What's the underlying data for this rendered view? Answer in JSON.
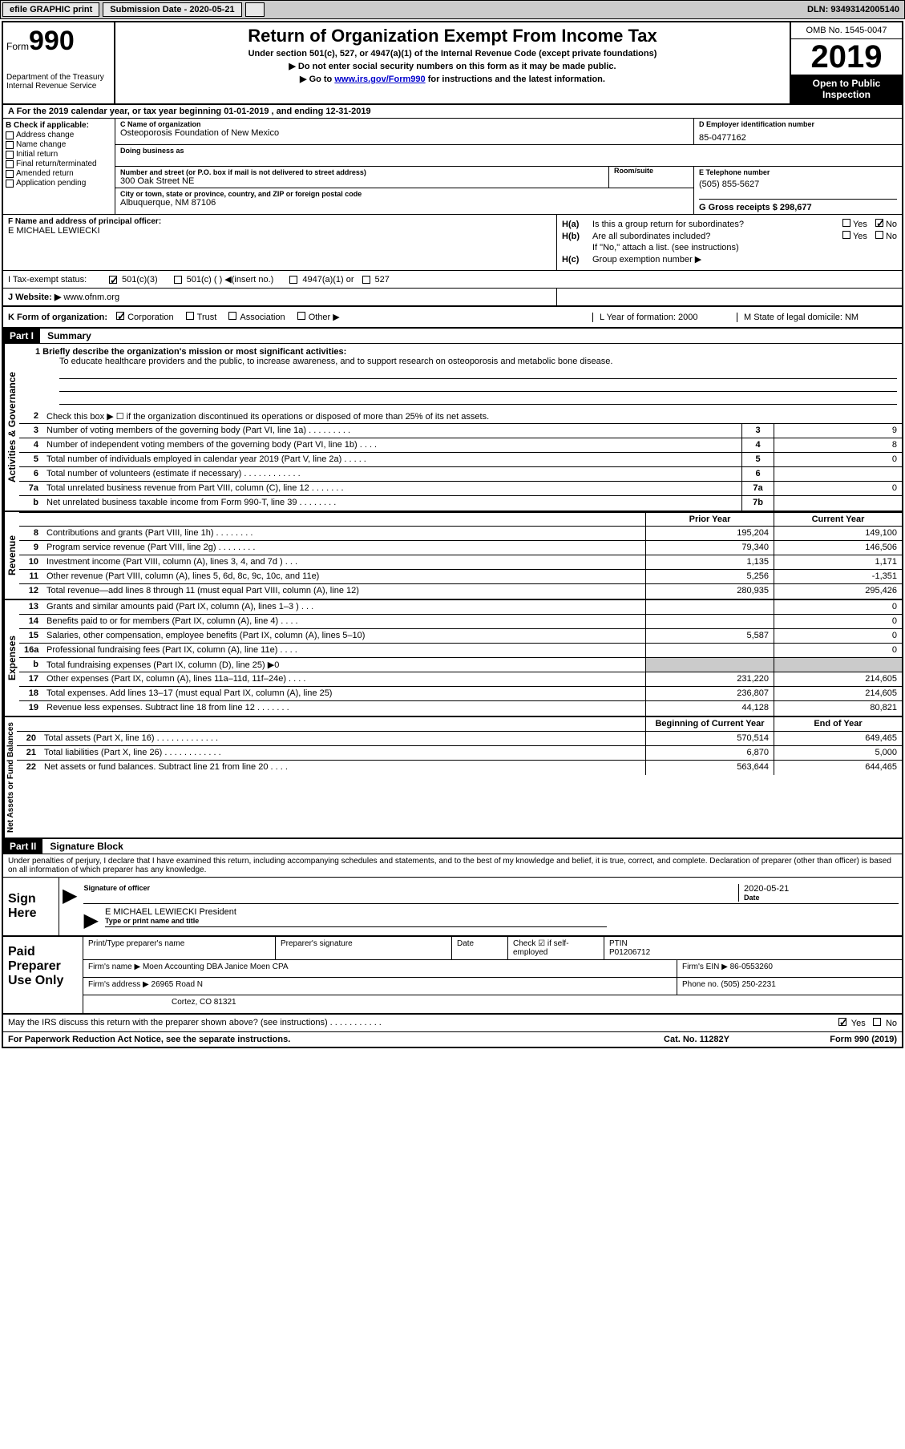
{
  "toolbar": {
    "efile": "efile GRAPHIC print",
    "subdate_label": "Submission Date - 2020-05-21",
    "dln": "DLN: 93493142005140"
  },
  "header": {
    "form": "Form",
    "form_num": "990",
    "dept": "Department of the Treasury\nInternal Revenue Service",
    "title": "Return of Organization Exempt From Income Tax",
    "sub1": "Under section 501(c), 527, or 4947(a)(1) of the Internal Revenue Code (except private foundations)",
    "sub2": "▶ Do not enter social security numbers on this form as it may be made public.",
    "sub3_pre": "▶ Go to ",
    "sub3_link": "www.irs.gov/Form990",
    "sub3_post": " for instructions and the latest information.",
    "omb": "OMB No. 1545-0047",
    "year": "2019",
    "open": "Open to Public Inspection"
  },
  "sectionA": "A For the 2019 calendar year, or tax year beginning 01-01-2019    , and ending 12-31-2019",
  "sectionB": {
    "label": "B Check if applicable:",
    "items": [
      "Address change",
      "Name change",
      "Initial return",
      "Final return/terminated",
      "Amended return",
      "Application pending"
    ]
  },
  "sectionC": {
    "name_label": "C Name of organization",
    "name": "Osteoporosis Foundation of New Mexico",
    "dba_label": "Doing business as",
    "addr_label": "Number and street (or P.O. box if mail is not delivered to street address)",
    "room_label": "Room/suite",
    "addr": "300 Oak Street NE",
    "city_label": "City or town, state or province, country, and ZIP or foreign postal code",
    "city": "Albuquerque, NM  87106"
  },
  "sectionD": {
    "label": "D Employer identification number",
    "ein": "85-0477162"
  },
  "sectionE": {
    "label": "E Telephone number",
    "phone": "(505) 855-5627"
  },
  "sectionG": {
    "label": "G Gross receipts $ 298,677"
  },
  "sectionF": {
    "label": "F  Name and address of principal officer:",
    "name": "E MICHAEL LEWIECKI"
  },
  "sectionH": {
    "a_label": "H(a)",
    "a_text": "Is this a group return for subordinates?",
    "a_no_checked": true,
    "b_label": "H(b)",
    "b_text": "Are all subordinates included?",
    "b_note": "If \"No,\" attach a list. (see instructions)",
    "c_label": "H(c)",
    "c_text": "Group exemption number ▶"
  },
  "sectionI": {
    "label": "I    Tax-exempt status:",
    "opt1": "501(c)(3)",
    "opt2": "501(c) (  ) ◀(insert no.)",
    "opt3": "4947(a)(1) or",
    "opt4": "527"
  },
  "sectionJ": {
    "label": "J    Website: ▶",
    "url": "www.ofnm.org"
  },
  "sectionK": {
    "label": "K Form of organization:",
    "opts": [
      "Corporation",
      "Trust",
      "Association",
      "Other ▶"
    ],
    "L": "L Year of formation: 2000",
    "M": "M State of legal domicile: NM"
  },
  "part1": {
    "header": "Part I",
    "title": "Summary",
    "mission_label": "1  Briefly describe the organization's mission or most significant activities:",
    "mission": "To educate healthcare providers and the public, to increase awareness, and to support research on osteoporosis and metabolic bone disease."
  },
  "governance": {
    "label": "Activities & Governance",
    "line2": "Check this box ▶ ☐  if the organization discontinued its operations or disposed of more than 25% of its net assets.",
    "rows": [
      {
        "n": "3",
        "t": "Number of voting members of the governing body (Part VI, line 1a)   .   .   .   .   .   .   .   .   .",
        "b": "3",
        "v": "9"
      },
      {
        "n": "4",
        "t": "Number of independent voting members of the governing body (Part VI, line 1b)   .   .   .   .",
        "b": "4",
        "v": "8"
      },
      {
        "n": "5",
        "t": "Total number of individuals employed in calendar year 2019 (Part V, line 2a)   .   .   .   .   .",
        "b": "5",
        "v": "0"
      },
      {
        "n": "6",
        "t": "Total number of volunteers (estimate if necessary)    .   .   .   .   .   .   .   .   .   .   .   .",
        "b": "6",
        "v": ""
      },
      {
        "n": "7a",
        "t": "Total unrelated business revenue from Part VIII, column (C), line 12   .   .   .   .   .   .   .",
        "b": "7a",
        "v": "0"
      },
      {
        "n": "b",
        "t": "Net unrelated business taxable income from Form 990-T, line 39    .   .   .   .   .   .   .   .",
        "b": "7b",
        "v": ""
      }
    ]
  },
  "revenue": {
    "label": "Revenue",
    "hdr_prior": "Prior Year",
    "hdr_current": "Current Year",
    "rows": [
      {
        "n": "8",
        "t": "Contributions and grants (Part VIII, line 1h)    .   .   .   .   .   .   .   .",
        "p": "195,204",
        "c": "149,100"
      },
      {
        "n": "9",
        "t": "Program service revenue (Part VIII, line 2g)    .   .   .   .   .   .   .   .",
        "p": "79,340",
        "c": "146,506"
      },
      {
        "n": "10",
        "t": "Investment income (Part VIII, column (A), lines 3, 4, and 7d )    .   .   .",
        "p": "1,135",
        "c": "1,171"
      },
      {
        "n": "11",
        "t": "Other revenue (Part VIII, column (A), lines 5, 6d, 8c, 9c, 10c, and 11e)",
        "p": "5,256",
        "c": "-1,351"
      },
      {
        "n": "12",
        "t": "Total revenue—add lines 8 through 11 (must equal Part VIII, column (A), line 12)",
        "p": "280,935",
        "c": "295,426"
      }
    ]
  },
  "expenses": {
    "label": "Expenses",
    "rows": [
      {
        "n": "13",
        "t": "Grants and similar amounts paid (Part IX, column (A), lines 1–3 )   .   .   .",
        "p": "",
        "c": "0"
      },
      {
        "n": "14",
        "t": "Benefits paid to or for members (Part IX, column (A), line 4)   .   .   .   .",
        "p": "",
        "c": "0"
      },
      {
        "n": "15",
        "t": "Salaries, other compensation, employee benefits (Part IX, column (A), lines 5–10)",
        "p": "5,587",
        "c": "0"
      },
      {
        "n": "16a",
        "t": "Professional fundraising fees (Part IX, column (A), line 11e)   .   .   .   .",
        "p": "",
        "c": "0"
      },
      {
        "n": "b",
        "t": "Total fundraising expenses (Part IX, column (D), line 25) ▶0",
        "p": "SHADE",
        "c": "SHADE"
      },
      {
        "n": "17",
        "t": "Other expenses (Part IX, column (A), lines 11a–11d, 11f–24e)   .   .   .   .",
        "p": "231,220",
        "c": "214,605"
      },
      {
        "n": "18",
        "t": "Total expenses. Add lines 13–17 (must equal Part IX, column (A), line 25)",
        "p": "236,807",
        "c": "214,605"
      },
      {
        "n": "19",
        "t": "Revenue less expenses. Subtract line 18 from line 12   .   .   .   .   .   .   .",
        "p": "44,128",
        "c": "80,821"
      }
    ]
  },
  "netassets": {
    "label": "Net Assets or Fund Balances",
    "hdr_begin": "Beginning of Current Year",
    "hdr_end": "End of Year",
    "rows": [
      {
        "n": "20",
        "t": "Total assets (Part X, line 16)   .   .   .   .   .   .   .   .   .   .   .   .   .",
        "p": "570,514",
        "c": "649,465"
      },
      {
        "n": "21",
        "t": "Total liabilities (Part X, line 26)   .   .   .   .   .   .   .   .   .   .   .   .",
        "p": "6,870",
        "c": "5,000"
      },
      {
        "n": "22",
        "t": "Net assets or fund balances. Subtract line 21 from line 20   .   .   .   .",
        "p": "563,644",
        "c": "644,465"
      }
    ]
  },
  "part2": {
    "header": "Part II",
    "title": "Signature Block",
    "penalty": "Under penalties of perjury, I declare that I have examined this return, including accompanying schedules and statements, and to the best of my knowledge and belief, it is true, correct, and complete. Declaration of preparer (other than officer) is based on all information of which preparer has any knowledge.",
    "sign_here": "Sign Here",
    "sig_officer": "Signature of officer",
    "sig_date": "Date",
    "sig_date_val": "2020-05-21",
    "sig_name": "E MICHAEL LEWIECKI President",
    "sig_type": "Type or print name and title",
    "paid": "Paid Preparer Use Only",
    "prep_name_label": "Print/Type preparer's name",
    "prep_sig_label": "Preparer's signature",
    "prep_date_label": "Date",
    "check_label": "Check ☑ if self-employed",
    "ptin_label": "PTIN",
    "ptin": "P01206712",
    "firm_name_label": "Firm's name     ▶",
    "firm_name": "Moen Accounting DBA Janice Moen CPA",
    "firm_ein_label": "Firm's EIN ▶",
    "firm_ein": "86-0553260",
    "firm_addr_label": "Firm's address ▶",
    "firm_addr1": "26965 Road N",
    "firm_addr2": "Cortez, CO  81321",
    "firm_phone_label": "Phone no.",
    "firm_phone": "(505) 250-2231",
    "discuss": "May the IRS discuss this return with the preparer shown above? (see instructions)    .   .   .   .   .   .   .   .   .   .   .",
    "yes": "Yes",
    "no": "No"
  },
  "footer": {
    "paperwork": "For Paperwork Reduction Act Notice, see the separate instructions.",
    "cat": "Cat. No. 11282Y",
    "form": "Form 990 (2019)"
  }
}
